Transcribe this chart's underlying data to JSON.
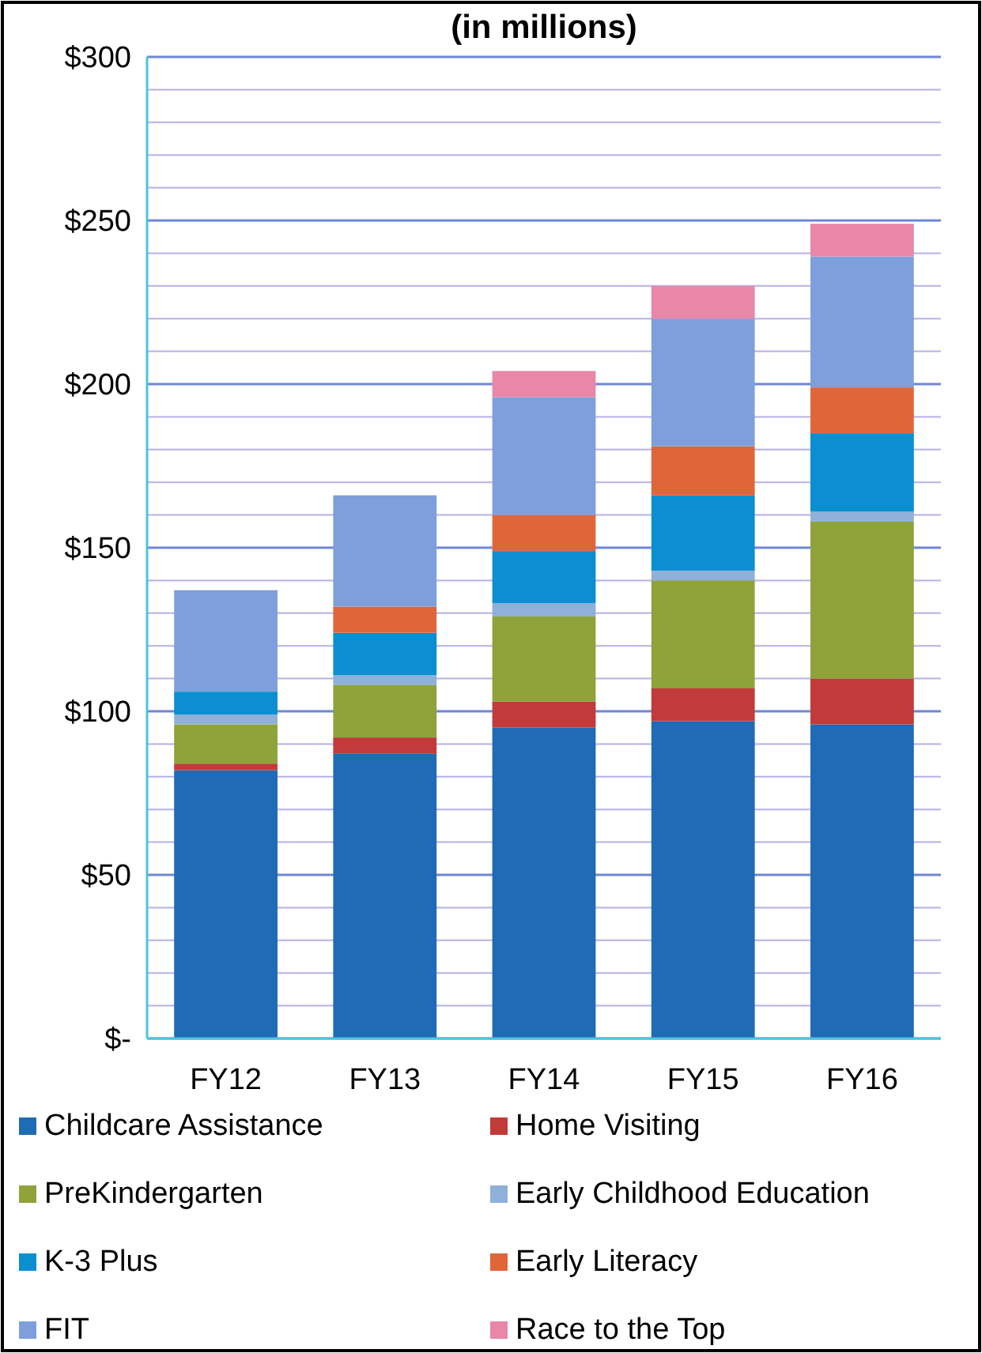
{
  "chart_data": {
    "type": "bar",
    "title": "(in millions)",
    "stacked": true,
    "categories": [
      "FY12",
      "FY13",
      "FY14",
      "FY15",
      "FY16"
    ],
    "series": [
      {
        "name": "Childcare Assistance",
        "color": "#1f6bb5",
        "values": [
          82,
          87,
          95,
          97,
          96
        ]
      },
      {
        "name": "Home Visiting",
        "color": "#c23a3a",
        "values": [
          2,
          5,
          8,
          10,
          14
        ]
      },
      {
        "name": "PreKindergarten",
        "color": "#8ea33a",
        "values": [
          12,
          16,
          26,
          33,
          48
        ]
      },
      {
        "name": "Early Childhood Education",
        "color": "#8fb0d8",
        "values": [
          3,
          3,
          4,
          3,
          3
        ]
      },
      {
        "name": "K-3 Plus",
        "color": "#0b8fd0",
        "values": [
          7,
          13,
          16,
          23,
          24
        ]
      },
      {
        "name": "Early Literacy",
        "color": "#e0663a",
        "values": [
          0,
          8,
          11,
          15,
          14
        ]
      },
      {
        "name": "FIT",
        "color": "#7f9fdc",
        "values": [
          31,
          34,
          36,
          39,
          40
        ]
      },
      {
        "name": "Race to the Top",
        "color": "#e887a8",
        "values": [
          0,
          0,
          8,
          10,
          10
        ]
      }
    ],
    "ylim": [
      0,
      300
    ],
    "yticks": [
      {
        "value": 0,
        "label": "$-"
      },
      {
        "value": 10,
        "label": null
      },
      {
        "value": 20,
        "label": null
      },
      {
        "value": 30,
        "label": null
      },
      {
        "value": 40,
        "label": null
      },
      {
        "value": 50,
        "label": "$50"
      },
      {
        "value": 60,
        "label": null
      },
      {
        "value": 70,
        "label": null
      },
      {
        "value": 80,
        "label": null
      },
      {
        "value": 90,
        "label": null
      },
      {
        "value": 100,
        "label": "$100"
      },
      {
        "value": 110,
        "label": null
      },
      {
        "value": 120,
        "label": null
      },
      {
        "value": 130,
        "label": null
      },
      {
        "value": 140,
        "label": null
      },
      {
        "value": 150,
        "label": "$150"
      },
      {
        "value": 160,
        "label": null
      },
      {
        "value": 170,
        "label": null
      },
      {
        "value": 180,
        "label": null
      },
      {
        "value": 190,
        "label": null
      },
      {
        "value": 200,
        "label": "$200"
      },
      {
        "value": 210,
        "label": null
      },
      {
        "value": 220,
        "label": null
      },
      {
        "value": 230,
        "label": null
      },
      {
        "value": 240,
        "label": null
      },
      {
        "value": 250,
        "label": "$250"
      },
      {
        "value": 260,
        "label": null
      },
      {
        "value": 270,
        "label": null
      },
      {
        "value": 280,
        "label": null
      },
      {
        "value": 290,
        "label": null
      },
      {
        "value": 300,
        "label": "$300"
      }
    ],
    "grid": true,
    "legend": "bottom"
  }
}
